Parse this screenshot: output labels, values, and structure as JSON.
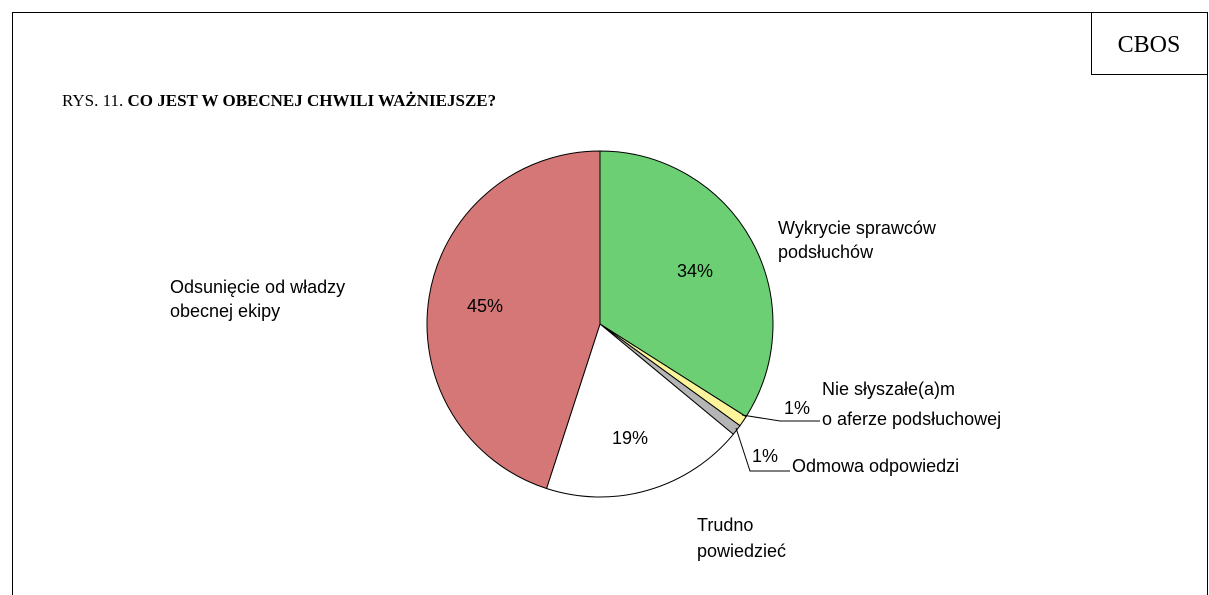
{
  "chart_data": {
    "type": "pie",
    "source": "CBOS",
    "figure_label": "RYS. 11.",
    "title": "CO JEST W OBECNEJ CHWILI WAŻNIEJSZE?",
    "categories": [
      [
        "Wykrycie sprawców",
        "podsłuchów"
      ],
      [
        "Nie słyszałe(a)m",
        "o aferze podsłuchowej"
      ],
      [
        "Odmowa odpowiedzi"
      ],
      [
        "Trudno",
        "powiedzieć"
      ],
      [
        "Odsunięcie od władzy",
        "obecnej ekipy"
      ]
    ],
    "values": [
      34,
      1,
      1,
      19,
      45
    ],
    "value_labels": [
      "34%",
      "1%",
      "1%",
      "19%",
      "45%"
    ],
    "colors": [
      "#6ccf73",
      "#fdf59b",
      "#b5b5b5",
      "#ffffff",
      "#d57677"
    ]
  }
}
